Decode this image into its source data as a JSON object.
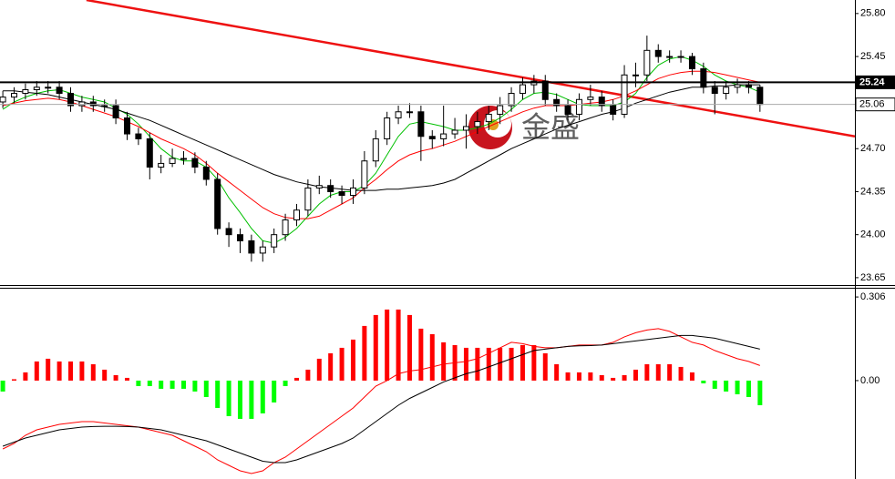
{
  "chart_data": [
    {
      "type": "candlestick",
      "xlim": [
        -0.25,
        75.4
      ],
      "ylim": [
        23.59,
        25.91
      ],
      "yticks": [
        {
          "value": 25.8,
          "label": "25.80"
        },
        25.45,
        {
          "value": 24.7,
          "label": "24.70"
        },
        24.35,
        {
          "value": 24.0,
          "label": "24.00"
        },
        23.65
      ],
      "levels": [
        25.24,
        25.06
      ],
      "up_color": "#ffffff",
      "down_color": "#000000",
      "open": [
        25.08,
        25.12,
        25.15,
        25.18,
        25.2,
        25.2,
        25.15,
        25.05,
        25.08,
        25.05,
        25.05,
        24.95,
        24.82,
        24.78,
        24.55,
        24.58,
        24.62,
        24.62,
        24.55,
        24.45,
        24.05,
        24.0,
        23.95,
        23.85,
        23.9,
        24.0,
        24.12,
        24.2,
        24.38,
        24.4,
        24.35,
        24.32,
        24.38,
        24.6,
        24.78,
        24.95,
        25.0,
        25.0,
        24.8,
        24.78,
        24.82,
        24.85,
        24.88,
        24.92,
        24.98,
        25.05,
        25.15,
        25.22,
        25.25,
        25.1,
        25.05,
        24.98,
        25.1,
        25.12,
        25.05,
        24.98,
        25.3,
        25.3,
        25.5,
        25.45,
        25.45,
        25.45,
        25.35,
        25.2,
        25.15,
        25.2,
        25.22,
        25.2
      ],
      "high": [
        25.17,
        25.2,
        25.23,
        25.25,
        25.25,
        25.25,
        25.2,
        25.13,
        25.13,
        25.1,
        25.1,
        25.0,
        24.87,
        24.83,
        24.65,
        24.7,
        24.68,
        24.67,
        24.6,
        24.5,
        24.1,
        24.05,
        24.0,
        23.95,
        24.05,
        24.17,
        24.25,
        24.45,
        24.48,
        24.45,
        24.4,
        24.45,
        24.68,
        24.85,
        25.0,
        25.05,
        25.07,
        25.05,
        24.85,
        25.05,
        24.95,
        24.98,
        25.0,
        25.05,
        25.12,
        25.2,
        25.28,
        25.3,
        25.3,
        25.15,
        25.1,
        25.15,
        25.22,
        25.17,
        25.1,
        25.38,
        25.4,
        25.62,
        25.55,
        25.5,
        25.5,
        25.48,
        25.4,
        25.25,
        25.25,
        25.27,
        25.25,
        25.22
      ],
      "low": [
        25.03,
        25.07,
        25.1,
        25.13,
        25.15,
        25.1,
        25.0,
        25.0,
        25.0,
        25.0,
        24.9,
        24.77,
        24.73,
        24.45,
        24.5,
        24.55,
        24.57,
        24.5,
        24.4,
        24.0,
        23.9,
        23.85,
        23.78,
        23.78,
        23.85,
        23.95,
        24.07,
        24.15,
        24.33,
        24.3,
        24.25,
        24.25,
        24.33,
        24.55,
        24.73,
        24.9,
        24.95,
        24.6,
        24.7,
        24.72,
        24.78,
        24.7,
        24.82,
        24.85,
        24.9,
        25.0,
        25.1,
        25.15,
        25.05,
        25.0,
        24.93,
        24.93,
        25.05,
        25.0,
        24.93,
        24.95,
        25.2,
        25.25,
        25.4,
        25.4,
        25.4,
        25.3,
        25.15,
        24.98,
        25.1,
        25.15,
        25.15,
        25.0
      ],
      "close": [
        25.12,
        25.15,
        25.18,
        25.2,
        25.2,
        25.15,
        25.05,
        25.08,
        25.05,
        25.05,
        24.95,
        24.82,
        24.78,
        24.55,
        24.58,
        24.62,
        24.62,
        24.55,
        24.45,
        24.05,
        24.0,
        23.95,
        23.85,
        23.9,
        24.0,
        24.12,
        24.2,
        24.38,
        24.4,
        24.35,
        24.32,
        24.38,
        24.6,
        24.78,
        24.95,
        25.0,
        25.0,
        24.8,
        24.78,
        24.82,
        24.85,
        24.88,
        24.92,
        24.98,
        25.05,
        25.15,
        25.22,
        25.25,
        25.1,
        25.05,
        24.98,
        25.1,
        25.12,
        25.05,
        24.98,
        25.3,
        25.3,
        25.5,
        25.45,
        25.45,
        25.45,
        25.35,
        25.2,
        25.15,
        25.2,
        25.22,
        25.2,
        25.06
      ],
      "ma_lines": [
        {
          "color": "#00c000",
          "values": [
            25.02,
            25.08,
            25.12,
            25.15,
            25.17,
            25.18,
            25.15,
            25.12,
            25.1,
            25.08,
            25.03,
            24.98,
            24.9,
            24.8,
            24.7,
            24.63,
            24.6,
            24.6,
            24.55,
            24.45,
            24.3,
            24.18,
            24.05,
            23.95,
            23.93,
            23.98,
            24.05,
            24.15,
            24.25,
            24.32,
            24.35,
            24.35,
            24.4,
            24.5,
            24.65,
            24.8,
            24.9,
            24.92,
            24.9,
            24.88,
            24.85,
            24.85,
            24.87,
            24.9,
            24.95,
            25.02,
            25.1,
            25.15,
            25.16,
            25.14,
            25.1,
            25.06,
            25.05,
            25.05,
            25.05,
            25.08,
            25.15,
            25.28,
            25.38,
            25.43,
            25.45,
            25.42,
            25.37,
            25.3,
            25.25,
            25.22,
            25.2,
            25.16
          ]
        },
        {
          "color": "#ff0000",
          "values": [
            25.05,
            25.07,
            25.09,
            25.1,
            25.11,
            25.1,
            25.08,
            25.05,
            25.02,
            24.99,
            24.96,
            24.92,
            24.88,
            24.83,
            24.78,
            24.74,
            24.7,
            24.65,
            24.58,
            24.5,
            24.43,
            24.36,
            24.29,
            24.22,
            24.17,
            24.14,
            24.13,
            24.13,
            24.15,
            24.2,
            24.25,
            24.3,
            24.38,
            24.45,
            24.53,
            24.6,
            24.65,
            24.68,
            24.7,
            24.73,
            24.76,
            24.8,
            24.84,
            24.88,
            24.92,
            24.96,
            25.0,
            25.03,
            25.05,
            25.05,
            25.05,
            25.06,
            25.07,
            25.08,
            25.1,
            25.13,
            25.17,
            25.22,
            25.27,
            25.3,
            25.32,
            25.33,
            25.33,
            25.32,
            25.3,
            25.28,
            25.26,
            25.24
          ]
        },
        {
          "color": "#000000",
          "values": [
            25.17,
            25.17,
            25.16,
            25.15,
            25.14,
            25.12,
            25.1,
            25.08,
            25.06,
            25.04,
            25.02,
            24.99,
            24.96,
            24.93,
            24.89,
            24.85,
            24.81,
            24.77,
            24.73,
            24.69,
            24.65,
            24.61,
            24.57,
            24.53,
            24.49,
            24.46,
            24.43,
            24.41,
            24.39,
            24.38,
            24.37,
            24.36,
            24.36,
            24.36,
            24.37,
            24.37,
            24.38,
            24.39,
            24.4,
            24.42,
            24.45,
            24.5,
            24.55,
            24.6,
            24.65,
            24.7,
            24.74,
            24.78,
            24.82,
            24.86,
            24.89,
            24.92,
            24.95,
            24.98,
            25.0,
            25.03,
            25.07,
            25.1,
            25.13,
            25.16,
            25.18,
            25.2,
            25.2,
            25.21,
            25.21,
            25.22,
            25.22,
            25.22
          ]
        }
      ],
      "trendline": {
        "color": "#ee1111",
        "x": [
          7.4,
          75.4
        ],
        "y": [
          25.91,
          24.8
        ]
      },
      "watermark": "金盛"
    },
    {
      "type": "macd",
      "xlim": [
        -0.25,
        75.4
      ],
      "ylim": [
        -0.36,
        0.333
      ],
      "yticks": [
        0.306,
        {
          "value": 0,
          "label": "0.00"
        }
      ],
      "up_color": "#ff0000",
      "down_color": "#00ff00",
      "values": [
        -0.04,
        0.005,
        0.03,
        0.07,
        0.08,
        0.07,
        0.07,
        0.07,
        0.06,
        0.04,
        0.02,
        0.01,
        -0.02,
        -0.02,
        -0.03,
        -0.03,
        -0.03,
        -0.04,
        -0.06,
        -0.1,
        -0.13,
        -0.14,
        -0.14,
        -0.12,
        -0.08,
        -0.02,
        0.01,
        0.04,
        0.08,
        0.1,
        0.12,
        0.15,
        0.2,
        0.24,
        0.26,
        0.26,
        0.24,
        0.19,
        0.17,
        0.14,
        0.13,
        0.12,
        0.12,
        0.12,
        0.12,
        0.12,
        0.13,
        0.13,
        0.1,
        0.06,
        0.03,
        0.03,
        0.03,
        0.02,
        0.01,
        0.02,
        0.04,
        0.06,
        0.06,
        0.06,
        0.05,
        0.03,
        -0.01,
        -0.03,
        -0.04,
        -0.05,
        -0.06,
        -0.09
      ],
      "lines": [
        {
          "color": "#ff0000",
          "values": [
            -0.25,
            -0.23,
            -0.2,
            -0.18,
            -0.17,
            -0.16,
            -0.155,
            -0.15,
            -0.15,
            -0.155,
            -0.16,
            -0.165,
            -0.17,
            -0.18,
            -0.19,
            -0.2,
            -0.22,
            -0.24,
            -0.26,
            -0.29,
            -0.31,
            -0.33,
            -0.34,
            -0.33,
            -0.3,
            -0.28,
            -0.25,
            -0.22,
            -0.19,
            -0.16,
            -0.13,
            -0.1,
            -0.06,
            -0.02,
            0.0,
            0.025,
            0.035,
            0.04,
            0.05,
            0.06,
            0.065,
            0.07,
            0.08,
            0.1,
            0.12,
            0.14,
            0.135,
            0.125,
            0.12,
            0.12,
            0.125,
            0.13,
            0.13,
            0.13,
            0.14,
            0.16,
            0.175,
            0.185,
            0.19,
            0.18,
            0.16,
            0.14,
            0.13,
            0.11,
            0.095,
            0.08,
            0.07,
            0.055
          ]
        },
        {
          "color": "#000000",
          "values": [
            -0.24,
            -0.225,
            -0.21,
            -0.2,
            -0.19,
            -0.18,
            -0.175,
            -0.17,
            -0.168,
            -0.167,
            -0.167,
            -0.168,
            -0.17,
            -0.175,
            -0.18,
            -0.19,
            -0.2,
            -0.21,
            -0.22,
            -0.235,
            -0.25,
            -0.265,
            -0.28,
            -0.295,
            -0.3,
            -0.3,
            -0.29,
            -0.275,
            -0.26,
            -0.245,
            -0.23,
            -0.21,
            -0.18,
            -0.15,
            -0.12,
            -0.09,
            -0.065,
            -0.045,
            -0.025,
            -0.005,
            0.01,
            0.025,
            0.035,
            0.05,
            0.065,
            0.08,
            0.095,
            0.11,
            0.115,
            0.12,
            0.125,
            0.127,
            0.128,
            0.13,
            0.135,
            0.14,
            0.145,
            0.15,
            0.155,
            0.16,
            0.165,
            0.165,
            0.16,
            0.155,
            0.145,
            0.135,
            0.125,
            0.115
          ]
        }
      ]
    }
  ]
}
